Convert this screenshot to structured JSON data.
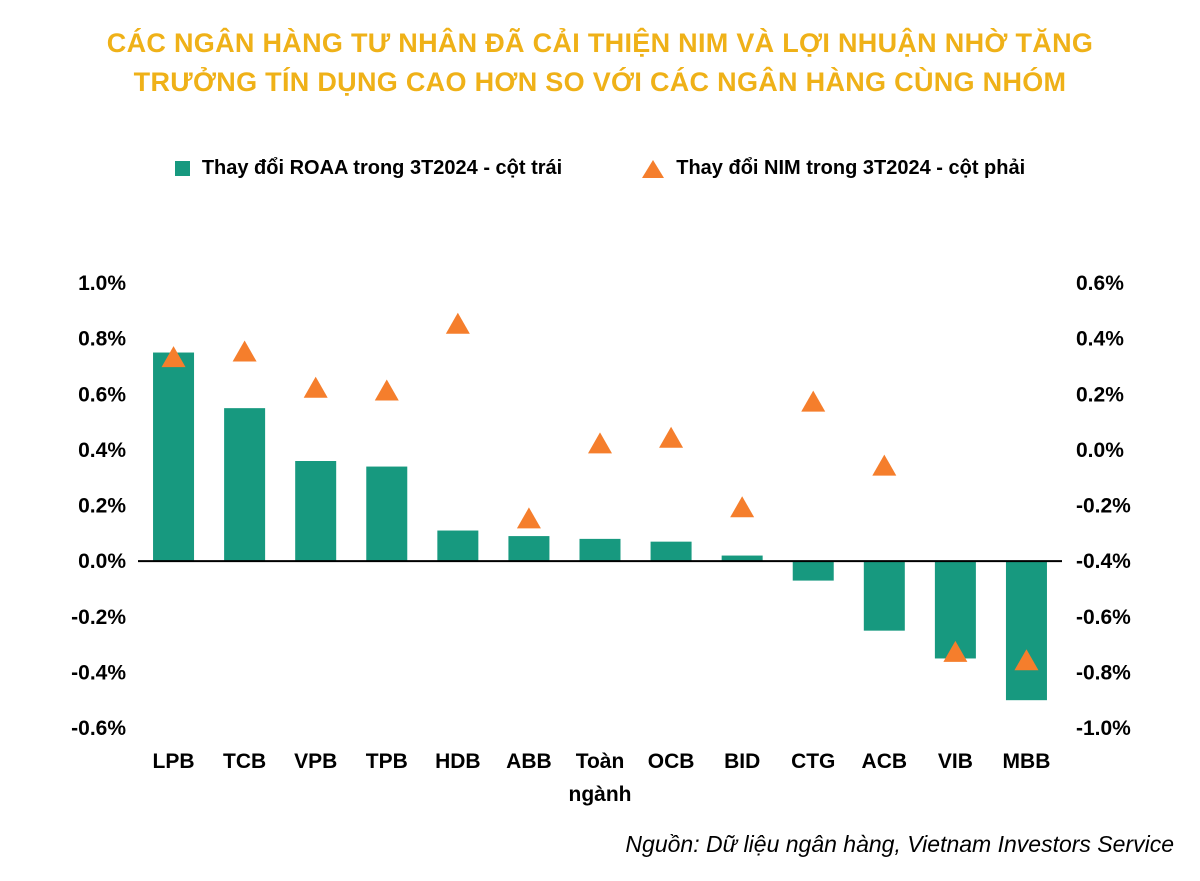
{
  "title": {
    "line1": "CÁC NGÂN HÀNG TƯ NHÂN ĐÃ CẢI THIỆN NIM VÀ LỢI NHUẬN NHỜ TĂNG",
    "line2": "TRƯỞNG TÍN DỤNG CAO HƠN SO VỚI CÁC NGÂN HÀNG CÙNG NHÓM"
  },
  "colors": {
    "title": "#EFB118",
    "bar": "#17997F",
    "marker": "#F57E2C",
    "text": "#000000"
  },
  "legend": [
    {
      "marker": "square",
      "color": "#17997F",
      "label": "Thay đổi ROAA trong 3T2024 - cột trái"
    },
    {
      "marker": "triangle",
      "color": "#F57E2C",
      "label": "Thay đổi NIM trong 3T2024 - cột phải"
    }
  ],
  "source": "Nguồn: Dữ liệu ngân hàng, Vietnam Investors Service",
  "chart_data": {
    "type": "bar",
    "subtype": "bar-with-scatter-triangles-dual-axis",
    "categories": [
      "LPB",
      "TCB",
      "VPB",
      "TPB",
      "HDB",
      "ABB",
      "Toàn ngành",
      "OCB",
      "BID",
      "CTG",
      "ACB",
      "VIB",
      "MBB"
    ],
    "series": [
      {
        "name": "Thay đổi ROAA trong 3T2024 - cột trái",
        "type": "bar",
        "axis": "left",
        "color": "#17997F",
        "unit": "%",
        "values": [
          0.75,
          0.55,
          0.36,
          0.34,
          0.11,
          0.09,
          0.08,
          0.07,
          0.02,
          -0.07,
          -0.25,
          -0.35,
          -0.5
        ]
      },
      {
        "name": "Thay đổi NIM trong 3T2024 - cột phải",
        "type": "scatter",
        "marker": "triangle",
        "axis": "right",
        "color": "#F57E2C",
        "unit": "%",
        "values": [
          0.33,
          0.35,
          0.22,
          0.21,
          0.45,
          -0.25,
          0.02,
          0.04,
          -0.21,
          0.17,
          -0.06,
          -0.73,
          -0.76
        ]
      }
    ],
    "left_axis": {
      "label": "",
      "min": -0.6,
      "max": 1.0,
      "ticks": [
        "1.0%",
        "0.8%",
        "0.6%",
        "0.4%",
        "0.2%",
        "0.0%",
        "-0.2%",
        "-0.4%",
        "-0.6%"
      ]
    },
    "right_axis": {
      "label": "",
      "min": -1.0,
      "max": 0.6,
      "ticks": [
        "0.6%",
        "0.4%",
        "0.2%",
        "0.0%",
        "-0.2%",
        "-0.4%",
        "-0.6%",
        "-0.8%",
        "-1.0%"
      ]
    },
    "grid": false,
    "legend_position": "top"
  }
}
